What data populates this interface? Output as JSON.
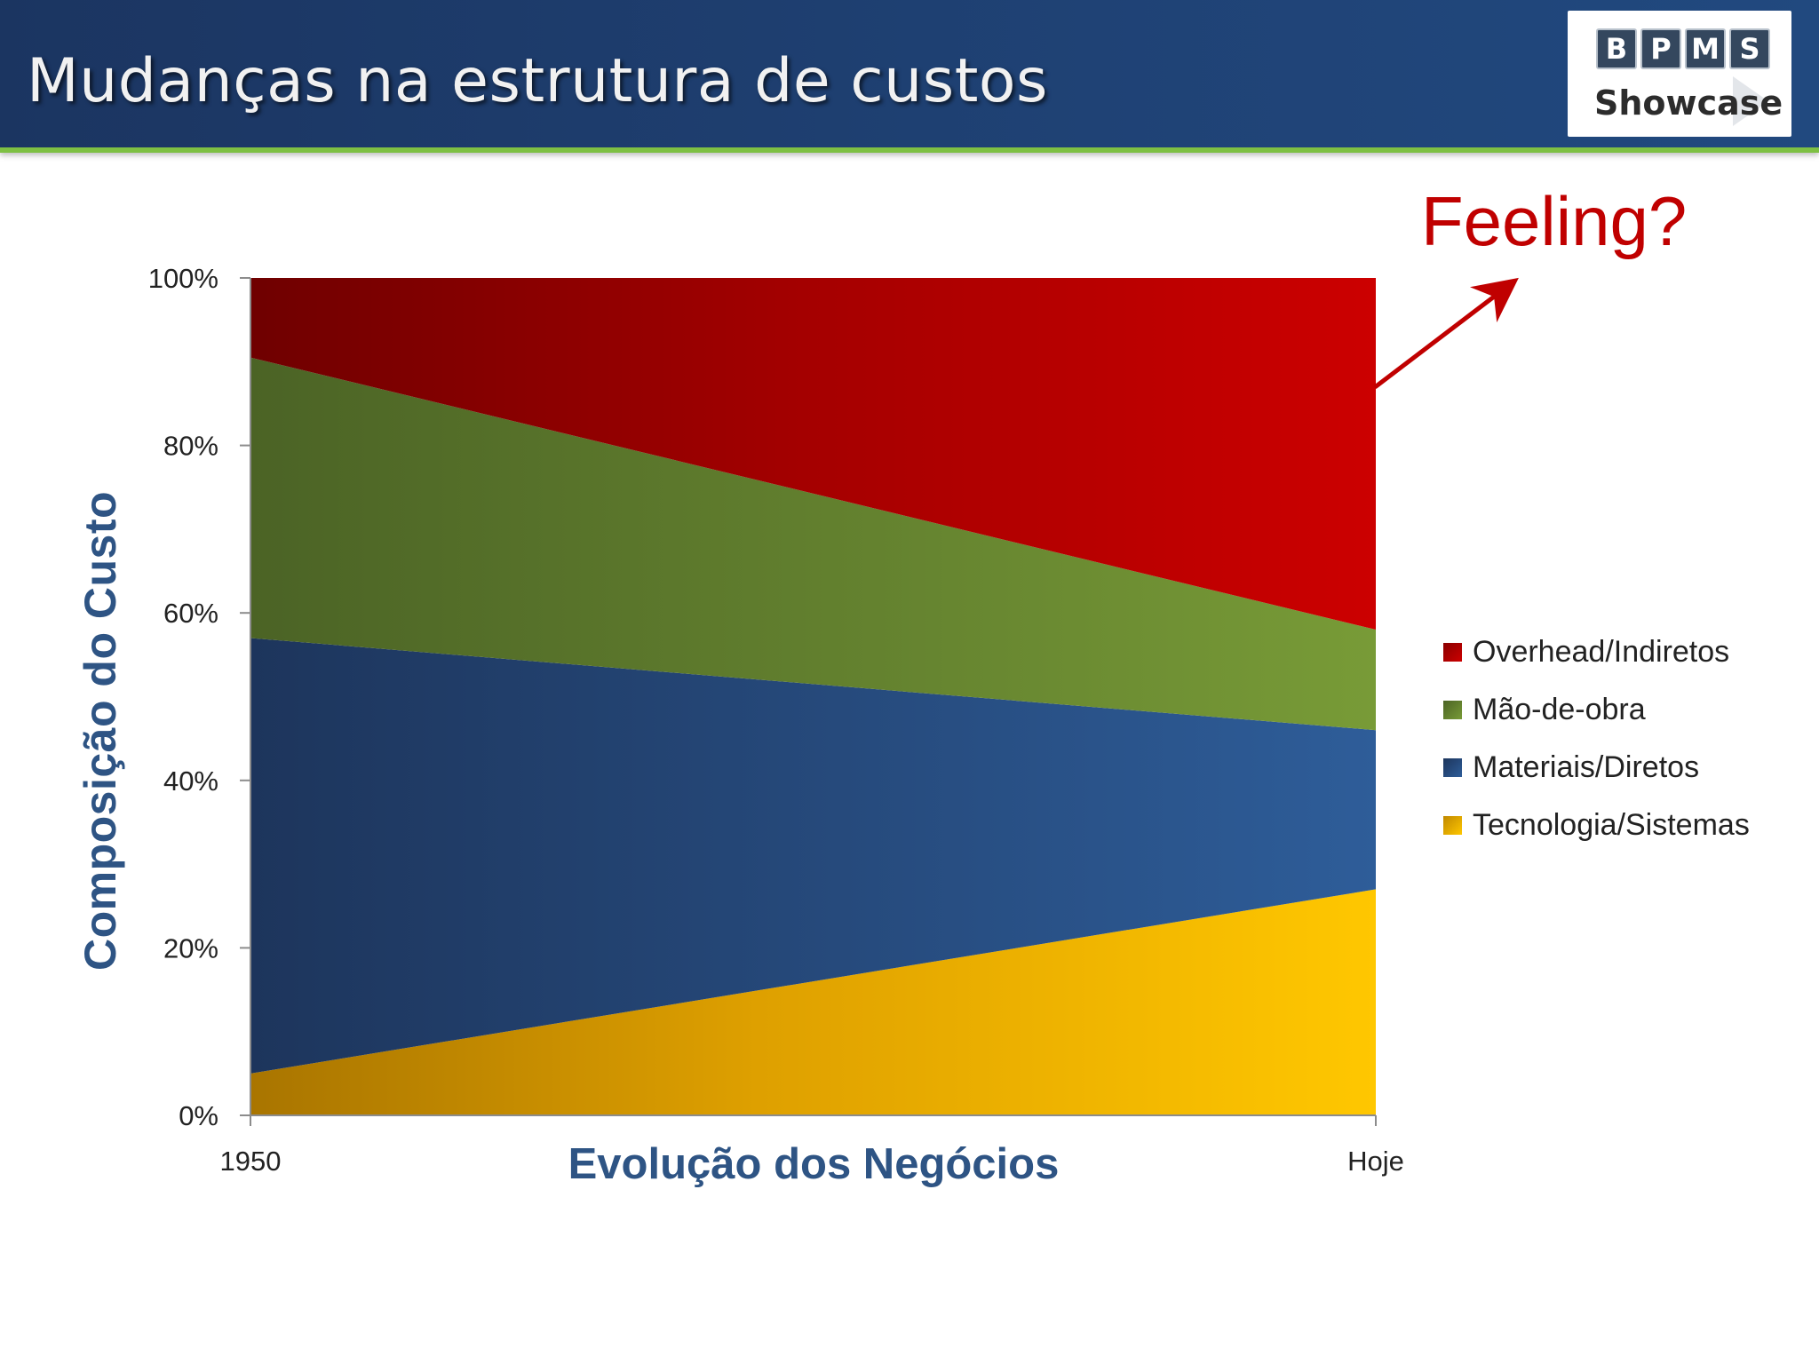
{
  "header": {
    "title": "Mudanças na estrutura de custos",
    "logo_letters": [
      "B",
      "P",
      "M",
      "S"
    ],
    "logo_word": "Showcase"
  },
  "annotation": "Feeling?",
  "chart_data": {
    "type": "area",
    "stacked": true,
    "x": [
      "1950",
      "Hoje"
    ],
    "xlabel": "Evolução dos Negócios",
    "ylabel": "Composição do Custo",
    "ylim": [
      0,
      100
    ],
    "yticks": [
      "0%",
      "20%",
      "40%",
      "60%",
      "80%",
      "100%"
    ],
    "grid": false,
    "legend_position": "right",
    "series": [
      {
        "name": "Tecnologia/Sistemas",
        "values": [
          5,
          27
        ],
        "color": "#f0b400"
      },
      {
        "name": "Materiais/Diretos",
        "values": [
          52,
          19
        ],
        "color": "#2a4f80"
      },
      {
        "name": "Mão-de-obra",
        "values": [
          33.5,
          12
        ],
        "color": "#628330"
      },
      {
        "name": "Overhead/Indiretos",
        "values": [
          9.5,
          42
        ],
        "color": "#c00000"
      }
    ],
    "legend_order": [
      "Overhead/Indiretos",
      "Mão-de-obra",
      "Materiais/Diretos",
      "Tecnologia/Sistemas"
    ]
  }
}
